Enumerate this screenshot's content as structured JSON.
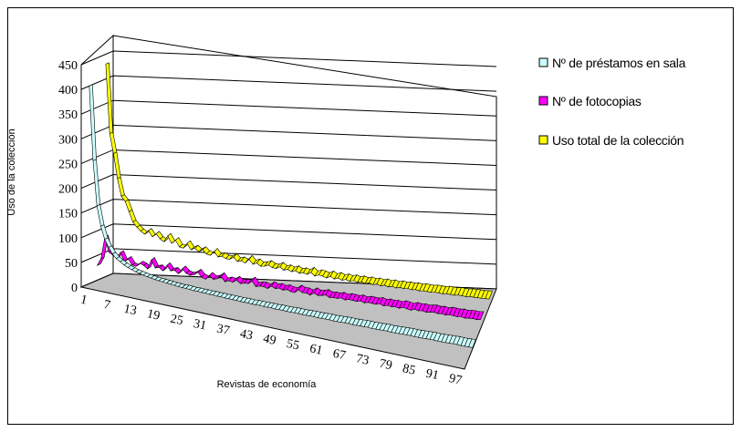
{
  "chart_data": {
    "type": "line",
    "style": "3d-ribbon",
    "title": "",
    "xlabel": "Revistas de economía",
    "ylabel": "Uso de la colección",
    "ylim": [
      0,
      450
    ],
    "yticks": [
      0,
      50,
      100,
      150,
      200,
      250,
      300,
      350,
      400,
      450
    ],
    "xlim": [
      1,
      100
    ],
    "xticks": [
      1,
      7,
      13,
      19,
      25,
      31,
      37,
      43,
      49,
      55,
      61,
      67,
      73,
      79,
      85,
      91,
      97
    ],
    "grid": true,
    "legend_position": "right",
    "series": [
      {
        "name": "Nº de préstamos en sala",
        "color": "#ccffff",
        "values": [
          400,
          250,
          160,
          120,
          95,
          80,
          68,
          60,
          55,
          50,
          46,
          43,
          40,
          38,
          36,
          34,
          33,
          31,
          30,
          29,
          28,
          27,
          26,
          25,
          24,
          24,
          23,
          22,
          22,
          21,
          21,
          20,
          20,
          19,
          19,
          18,
          18,
          17,
          17,
          16,
          16,
          16,
          15,
          15,
          15,
          14,
          14,
          14,
          13,
          13,
          13,
          12,
          12,
          12,
          12,
          11,
          11,
          11,
          11,
          10,
          10,
          10,
          10,
          9,
          9,
          9,
          9,
          9,
          8,
          8,
          8,
          8,
          8,
          7,
          7,
          7,
          7,
          7,
          6,
          6,
          6,
          6,
          6,
          6,
          5,
          5,
          5,
          5,
          5,
          5,
          4,
          4,
          4,
          4,
          4,
          4,
          3,
          3,
          3,
          3
        ]
      },
      {
        "name": "Nº de fotocopias",
        "color": "#ff00ff",
        "values": [
          30,
          45,
          90,
          60,
          55,
          50,
          62,
          45,
          52,
          40,
          38,
          45,
          42,
          36,
          55,
          40,
          42,
          36,
          48,
          38,
          40,
          34,
          45,
          37,
          34,
          36,
          42,
          33,
          30,
          38,
          32,
          34,
          40,
          30,
          33,
          31,
          36,
          30,
          32,
          32,
          38,
          28,
          30,
          30,
          27,
          33,
          29,
          31,
          28,
          30,
          27,
          26,
          32,
          28,
          28,
          25,
          30,
          26,
          27,
          29,
          25,
          26,
          25,
          27,
          24,
          26,
          25,
          24,
          26,
          23,
          25,
          24,
          23,
          25,
          22,
          24,
          22,
          23,
          21,
          24,
          22,
          20,
          23,
          21,
          22,
          20,
          21,
          22,
          20,
          21,
          19,
          21,
          20,
          19,
          20,
          18,
          19,
          19,
          18,
          19
        ]
      },
      {
        "name": "Uso total de la colección",
        "color": "#ffff00",
        "values": [
          430,
          290,
          250,
          200,
          165,
          155,
          135,
          115,
          105,
          98,
          92,
          100,
          88,
          95,
          85,
          80,
          92,
          78,
          85,
          72,
          70,
          80,
          68,
          72,
          65,
          70,
          62,
          60,
          68,
          58,
          60,
          56,
          55,
          60,
          52,
          54,
          50,
          58,
          49,
          52,
          46,
          47,
          50,
          45,
          44,
          48,
          42,
          44,
          40,
          43,
          38,
          40,
          37,
          42,
          35,
          38,
          36,
          33,
          37,
          32,
          35,
          31,
          33,
          30,
          32,
          29,
          31,
          28,
          30,
          27,
          29,
          26,
          28,
          25,
          27,
          24,
          26,
          24,
          25,
          23,
          24,
          22,
          23,
          22,
          21,
          22,
          21,
          20,
          21,
          20,
          19,
          20,
          19,
          18,
          19,
          18,
          18,
          17,
          17,
          17
        ]
      }
    ]
  }
}
